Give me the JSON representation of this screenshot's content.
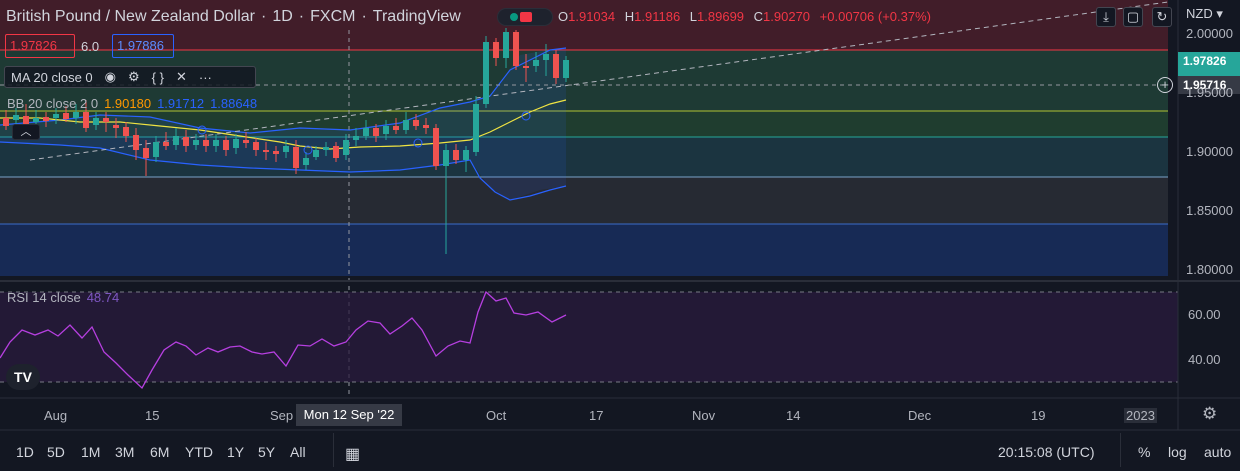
{
  "header": {
    "title": "British Pound / New Zealand Dollar",
    "interval": "1D",
    "exchange": "FXCM",
    "source": "TradingView"
  },
  "ohlc": {
    "open_key": "O",
    "open": "1.91034",
    "high_key": "H",
    "high": "1.91186",
    "low_key": "L",
    "low": "1.89699",
    "close_key": "C",
    "close": "1.90270",
    "change": "+0.00706 (+0.37%)"
  },
  "trade": {
    "sell": "1.97826",
    "spread": "6.0",
    "buy": "1.97886"
  },
  "indicators": {
    "ma": {
      "label": "MA 20 close 0"
    },
    "bb": {
      "label": "BB 20 close 2 0",
      "basis": "1.90180",
      "upper": "1.91712",
      "lower": "1.88648"
    },
    "rsi": {
      "label": "RSI 14 close",
      "value": "48.74"
    }
  },
  "currency": "NZD",
  "price_axis": [
    "2.00000",
    "1.95000",
    "1.90000",
    "1.85000",
    "1.80000"
  ],
  "price_labels": {
    "last": "1.97826",
    "cursor": "1.95716",
    "hidden": "44:54"
  },
  "rsi_axis": [
    "60.00",
    "40.00"
  ],
  "time_axis": [
    "Aug",
    "15",
    "Sep",
    "Oct",
    "17",
    "Nov",
    "14",
    "Dec",
    "19",
    "2023"
  ],
  "crosshair_date": "Mon 12 Sep '22",
  "timeframes": [
    "1D",
    "5D",
    "1M",
    "3M",
    "6M",
    "YTD",
    "1Y",
    "5Y",
    "All"
  ],
  "clock": "20:15:08 (UTC)",
  "scale_buttons": [
    "%",
    "log",
    "auto"
  ],
  "colors": {
    "up": "#26a69a",
    "down": "#ef5350",
    "ma": "#f0e442",
    "bb": "#2962ff",
    "rsi": "#b63fe0",
    "background": "#131722"
  }
}
